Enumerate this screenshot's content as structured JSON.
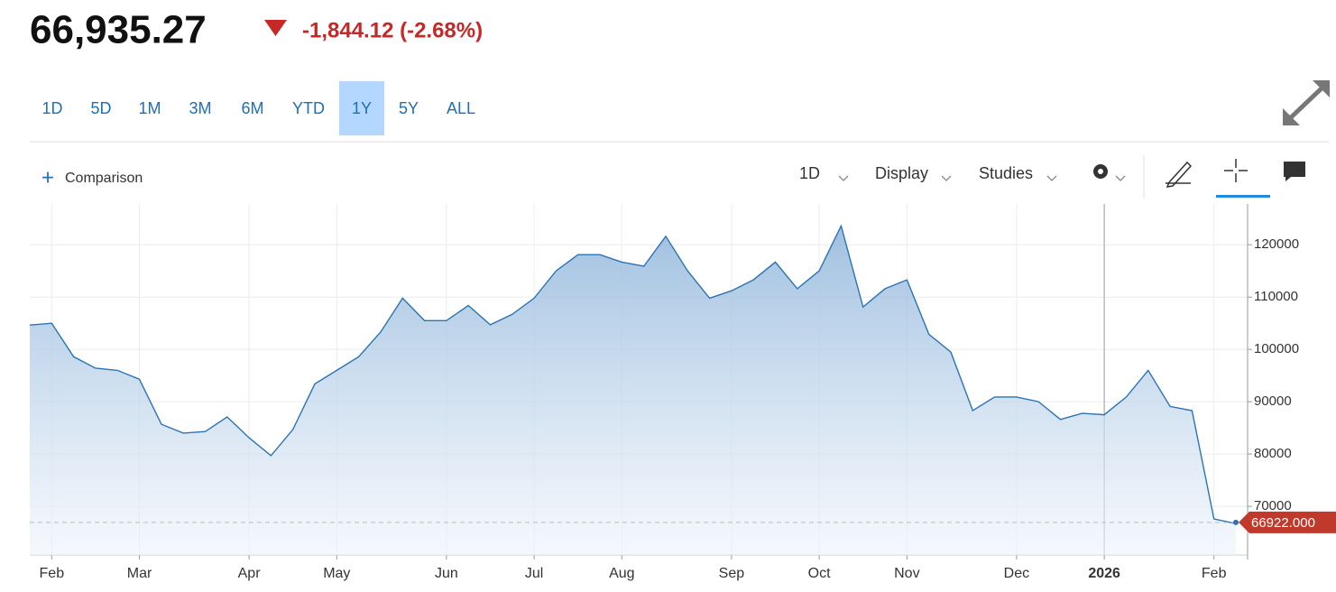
{
  "header": {
    "price": "66,935.27",
    "change": "-1,844.12 (-2.68%)"
  },
  "range_buttons": [
    "1D",
    "5D",
    "1M",
    "3M",
    "6M",
    "YTD",
    "1Y",
    "5Y",
    "ALL"
  ],
  "toolbar": {
    "comparison": "Comparison",
    "interval": "1D",
    "display": "Display",
    "studies": "Studies"
  },
  "chart_data": {
    "type": "area",
    "color": "#2a74b5",
    "categories": [
      null,
      "Feb",
      null,
      null,
      null,
      "Mar",
      null,
      null,
      null,
      null,
      "Apr",
      null,
      null,
      null,
      "May",
      null,
      null,
      null,
      null,
      "Jun",
      null,
      null,
      null,
      "Jul",
      null,
      null,
      null,
      "Aug",
      null,
      null,
      null,
      null,
      "Sep",
      null,
      null,
      null,
      "Oct",
      null,
      null,
      null,
      "Nov",
      null,
      null,
      null,
      null,
      "Dec",
      null,
      null,
      null,
      "2026",
      null,
      null,
      null,
      null,
      "Feb",
      null
    ],
    "values": [
      104650,
      105000,
      98600,
      96400,
      96000,
      94300,
      85700,
      84000,
      84300,
      87100,
      83100,
      79700,
      84700,
      93400,
      96000,
      98600,
      103300,
      109800,
      105500,
      105500,
      108400,
      104700,
      106700,
      109800,
      115000,
      118100,
      118100,
      116700,
      115900,
      121600,
      115000,
      109800,
      111200,
      113300,
      116700,
      111600,
      115000,
      123600,
      108100,
      111600,
      113300,
      102900,
      99500,
      88300,
      90900,
      90900,
      90000,
      86600,
      87800,
      87500,
      90900,
      96000,
      89100,
      88300,
      67600,
      66700
    ],
    "ylim": [
      60700,
      127800
    ],
    "yticks": [
      70000,
      80000,
      90000,
      100000,
      110000,
      120000
    ],
    "grid": true,
    "last_price": {
      "value": 66922,
      "label": "66922.000"
    }
  }
}
